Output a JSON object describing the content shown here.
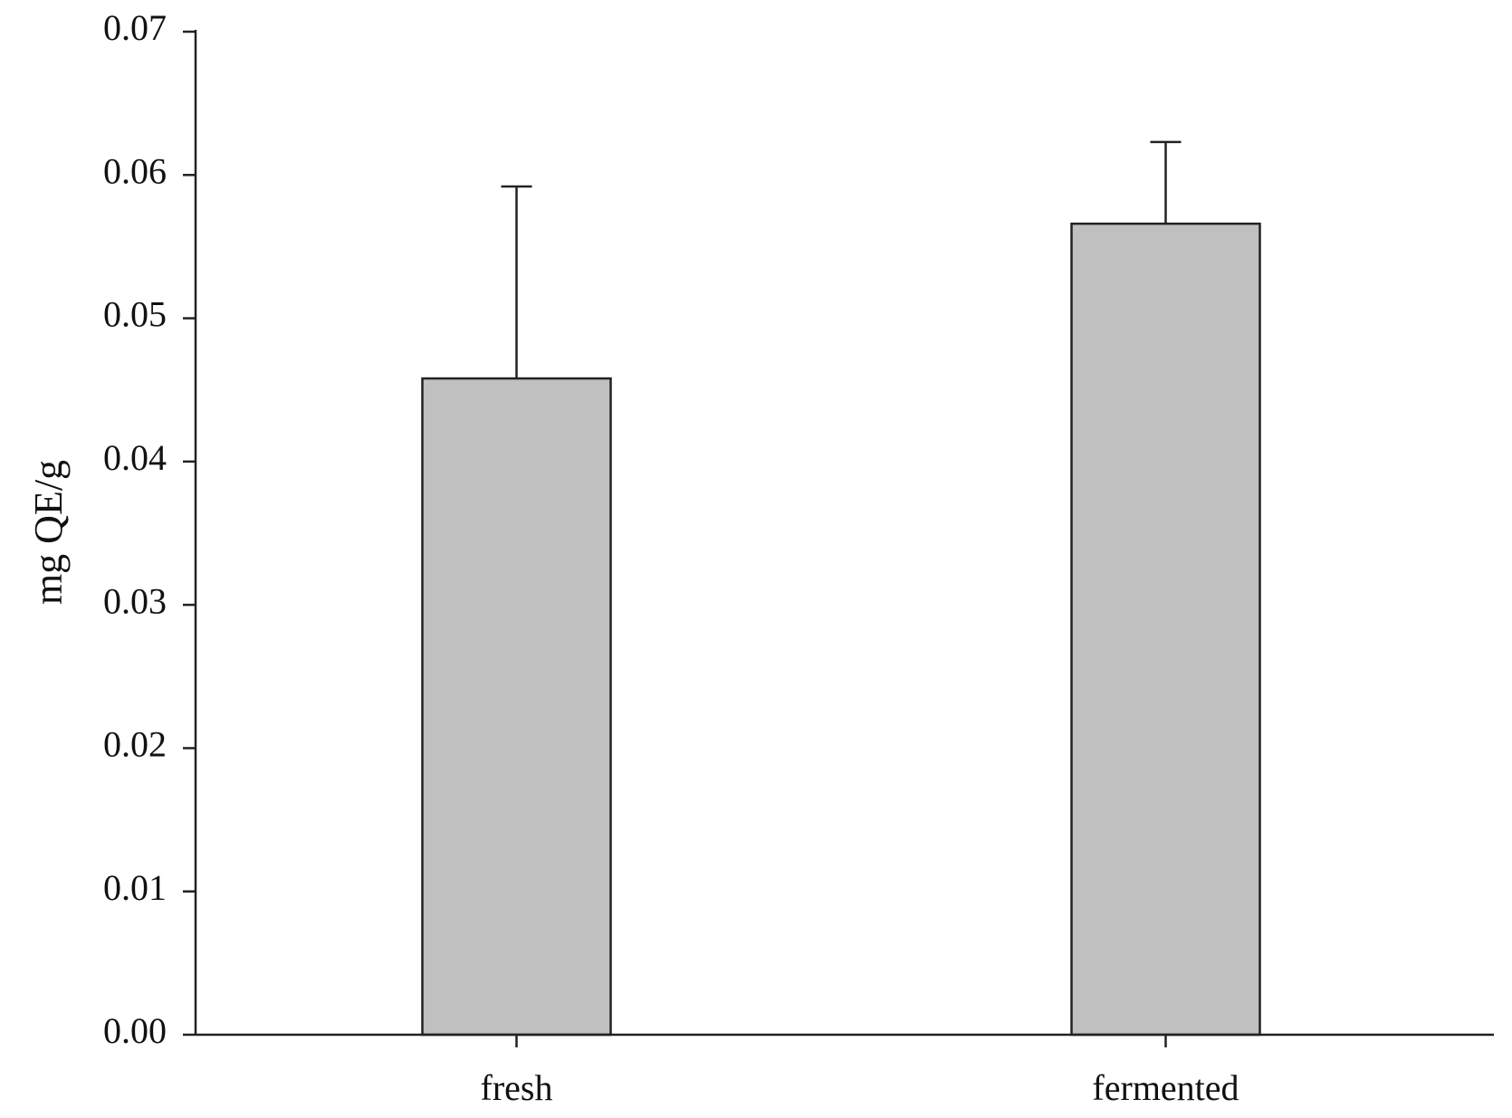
{
  "chart_data": {
    "type": "bar",
    "title": "",
    "xlabel": "",
    "ylabel": "mg QE/g",
    "categories": [
      "fresh",
      "fermented"
    ],
    "values": [
      0.0458,
      0.0566
    ],
    "errors": [
      0.0134,
      0.0057
    ],
    "ylim": [
      0,
      0.07
    ],
    "yticks": [
      "0.00",
      "0.01",
      "0.02",
      "0.03",
      "0.04",
      "0.05",
      "0.06",
      "0.07"
    ],
    "grid": false,
    "legend": "none",
    "colors": {
      "bar_fill": "#c0c0c0",
      "stroke": "#222222"
    }
  }
}
